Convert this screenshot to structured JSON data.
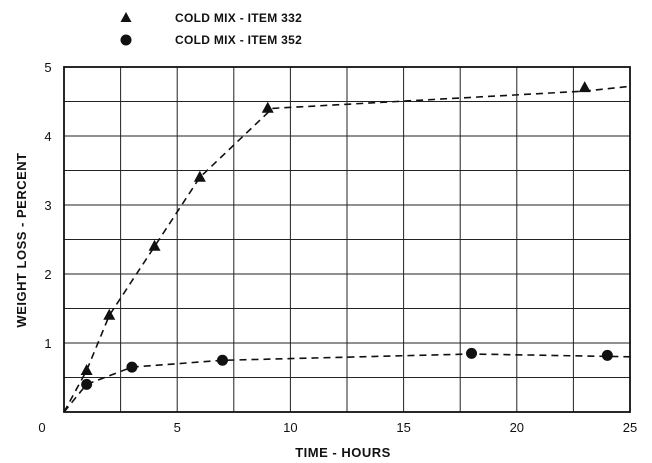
{
  "chart_data": {
    "type": "scatter",
    "xlabel": "TIME - HOURS",
    "ylabel": "WEIGHT LOSS - PERCENT",
    "xlim": [
      0,
      25
    ],
    "ylim": [
      0,
      5
    ],
    "x_ticks": [
      "0",
      "5",
      "10",
      "15",
      "20",
      "25"
    ],
    "y_ticks": [
      "0",
      "1",
      "2",
      "3",
      "4",
      "5"
    ],
    "grid": true,
    "legend_position": "top-left",
    "series": [
      {
        "name": "COLD MIX - ITEM 332",
        "marker": "triangle",
        "line_style": "dashed",
        "color": "#111111",
        "points": [
          [
            1,
            0.6
          ],
          [
            2,
            1.4
          ],
          [
            4,
            2.4
          ],
          [
            6,
            3.4
          ],
          [
            9,
            4.4
          ],
          [
            23,
            4.7
          ]
        ],
        "curve": [
          [
            0,
            0
          ],
          [
            1,
            0.6
          ],
          [
            2,
            1.4
          ],
          [
            4,
            2.4
          ],
          [
            6,
            3.4
          ],
          [
            9.2,
            4.4
          ],
          [
            23,
            4.65
          ],
          [
            25,
            4.72
          ]
        ]
      },
      {
        "name": "COLD MIX - ITEM 352",
        "marker": "circle",
        "line_style": "dashed",
        "color": "#111111",
        "points": [
          [
            1,
            0.4
          ],
          [
            3,
            0.65
          ],
          [
            7,
            0.75
          ],
          [
            18,
            0.85
          ],
          [
            24,
            0.82
          ]
        ],
        "curve": [
          [
            0,
            0
          ],
          [
            1,
            0.4
          ],
          [
            3,
            0.65
          ],
          [
            7,
            0.75
          ],
          [
            18,
            0.84
          ],
          [
            25,
            0.8
          ]
        ]
      }
    ]
  }
}
